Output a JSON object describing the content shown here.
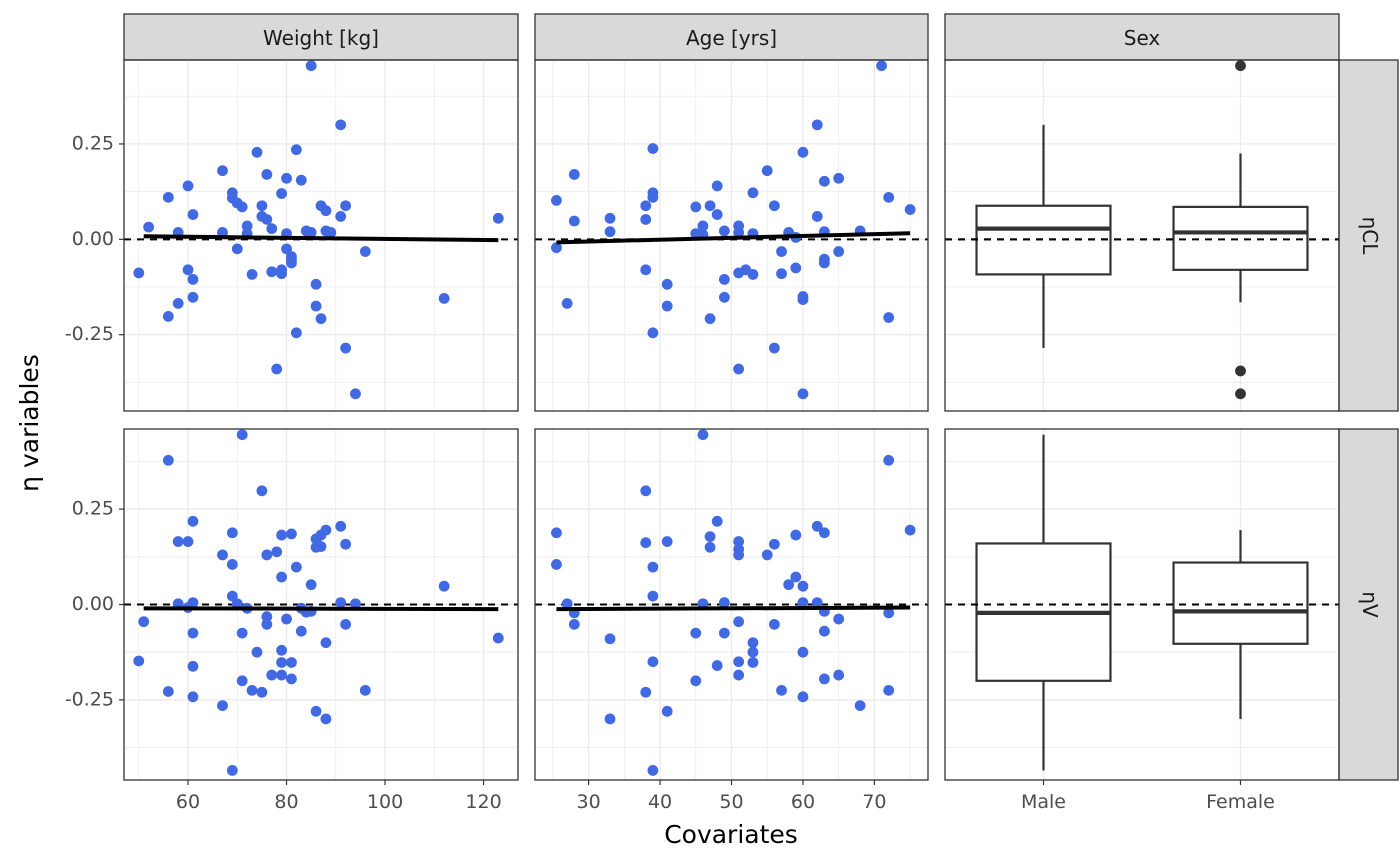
{
  "chart_data": {
    "type": "scatter",
    "x_title": "Covariates",
    "y_title": "η variables",
    "colors": {
      "points": "#4169e1",
      "trend": "#000000",
      "box": "#333333",
      "strip_bg": "#d9d9d9",
      "grid": "#ebebeb"
    },
    "columns": [
      {
        "key": "wt",
        "strip": "Weight [kg]",
        "kind": "continuous",
        "xlim": [
          47,
          127
        ],
        "ticks": [
          "60",
          "80",
          "100",
          "120"
        ],
        "tick_values": [
          60,
          80,
          100,
          120
        ]
      },
      {
        "key": "age",
        "strip": "Age [yrs]",
        "kind": "continuous",
        "xlim": [
          22.5,
          77.5
        ],
        "ticks": [
          "30",
          "40",
          "50",
          "60",
          "70"
        ],
        "tick_values": [
          30,
          40,
          50,
          60,
          70
        ]
      },
      {
        "key": "sex",
        "strip": "Sex",
        "kind": "categorical",
        "categories": [
          "Male",
          "Female"
        ]
      }
    ],
    "rows": [
      {
        "key": "cl",
        "strip": "ηCL",
        "ylim": [
          -0.45,
          0.47
        ],
        "ticks": [
          "0.25",
          "0.00",
          "-0.25"
        ],
        "tick_values": [
          0.25,
          0,
          -0.25
        ],
        "reference_line": 0
      },
      {
        "key": "v",
        "strip": "ηV",
        "ylim": [
          -0.46,
          0.46
        ],
        "ticks": [
          "0.25",
          "0.00",
          "-0.25"
        ],
        "tick_values": [
          0.25,
          0,
          -0.25
        ],
        "reference_line": 0
      }
    ],
    "panels": {
      "cl_wt": {
        "points": [
          [
            50,
            -0.088
          ],
          [
            52,
            0.032
          ],
          [
            56,
            0.11
          ],
          [
            56,
            -0.202
          ],
          [
            58,
            0.018
          ],
          [
            58,
            -0.168
          ],
          [
            60,
            -0.08
          ],
          [
            60,
            0.14
          ],
          [
            61,
            0.065
          ],
          [
            61,
            -0.105
          ],
          [
            61,
            -0.152
          ],
          [
            67,
            0.18
          ],
          [
            67,
            0.018
          ],
          [
            69,
            0.122
          ],
          [
            69,
            0.108
          ],
          [
            70,
            -0.025
          ],
          [
            70,
            0.095
          ],
          [
            71,
            0.085
          ],
          [
            72,
            0.035
          ],
          [
            72,
            0.015
          ],
          [
            73,
            -0.092
          ],
          [
            74,
            0.228
          ],
          [
            75,
            0.088
          ],
          [
            75,
            0.06
          ],
          [
            76,
            0.17
          ],
          [
            76,
            0.052
          ],
          [
            77,
            0.028
          ],
          [
            77,
            -0.085
          ],
          [
            78,
            -0.34
          ],
          [
            79,
            0.12
          ],
          [
            79,
            -0.08
          ],
          [
            79,
            -0.09
          ],
          [
            80,
            0.16
          ],
          [
            80,
            0.015
          ],
          [
            80,
            -0.025
          ],
          [
            81,
            -0.045
          ],
          [
            81,
            -0.055
          ],
          [
            81,
            -0.062
          ],
          [
            82,
            0.235
          ],
          [
            82,
            -0.245
          ],
          [
            83,
            0.155
          ],
          [
            84,
            0.022
          ],
          [
            85,
            0.455
          ],
          [
            85,
            0.018
          ],
          [
            86,
            -0.118
          ],
          [
            86,
            -0.175
          ],
          [
            87,
            0.088
          ],
          [
            87,
            -0.208
          ],
          [
            88,
            0.075
          ],
          [
            88,
            0.022
          ],
          [
            89,
            0.018
          ],
          [
            91,
            0.3
          ],
          [
            91,
            0.06
          ],
          [
            92,
            0.088
          ],
          [
            92,
            -0.285
          ],
          [
            94,
            -0.405
          ],
          [
            96,
            -0.032
          ],
          [
            112,
            -0.155
          ],
          [
            123,
            0.055
          ]
        ],
        "trend": [
          [
            51,
            0.008
          ],
          [
            123,
            -0.002
          ]
        ]
      },
      "cl_age": {
        "points": [
          [
            25.5,
            0.102
          ],
          [
            25.5,
            -0.022
          ],
          [
            27,
            -0.168
          ],
          [
            28,
            0.048
          ],
          [
            28,
            0.17
          ],
          [
            33,
            0.055
          ],
          [
            33,
            0.02
          ],
          [
            38,
            0.088
          ],
          [
            38,
            0.052
          ],
          [
            38,
            -0.08
          ],
          [
            39,
            0.122
          ],
          [
            39,
            0.11
          ],
          [
            39,
            0.238
          ],
          [
            39,
            -0.245
          ],
          [
            41,
            -0.118
          ],
          [
            41,
            -0.175
          ],
          [
            45,
            0.085
          ],
          [
            45,
            0.015
          ],
          [
            46,
            0.012
          ],
          [
            46,
            0.035
          ],
          [
            47,
            0.088
          ],
          [
            47,
            -0.208
          ],
          [
            48,
            0.14
          ],
          [
            48,
            0.065
          ],
          [
            49,
            0.022
          ],
          [
            49,
            -0.105
          ],
          [
            49,
            -0.152
          ],
          [
            51,
            0.035
          ],
          [
            51,
            0.018
          ],
          [
            51,
            -0.088
          ],
          [
            51,
            -0.34
          ],
          [
            52,
            -0.08
          ],
          [
            53,
            0.015
          ],
          [
            53,
            0.122
          ],
          [
            53,
            -0.092
          ],
          [
            55,
            0.18
          ],
          [
            56,
            0.088
          ],
          [
            56,
            -0.285
          ],
          [
            57,
            -0.032
          ],
          [
            57,
            -0.09
          ],
          [
            58,
            0.018
          ],
          [
            59,
            -0.075
          ],
          [
            59,
            0.005
          ],
          [
            60,
            0.228
          ],
          [
            60,
            -0.15
          ],
          [
            60,
            -0.158
          ],
          [
            60,
            -0.405
          ],
          [
            62,
            0.3
          ],
          [
            62,
            0.06
          ],
          [
            63,
            0.152
          ],
          [
            63,
            0.02
          ],
          [
            63,
            -0.052
          ],
          [
            63,
            -0.062
          ],
          [
            65,
            0.16
          ],
          [
            65,
            -0.032
          ],
          [
            68,
            0.022
          ],
          [
            71,
            0.455
          ],
          [
            72,
            0.11
          ],
          [
            72,
            -0.205
          ],
          [
            75,
            0.078
          ]
        ],
        "trend": [
          [
            25.5,
            -0.008
          ],
          [
            75,
            0.016
          ]
        ]
      },
      "cl_sex": {
        "boxes": [
          {
            "category": "Male",
            "whisker_low": -0.285,
            "q1": -0.092,
            "median": 0.028,
            "q3": 0.088,
            "whisker_high": 0.3,
            "outliers": []
          },
          {
            "category": "Female",
            "whisker_low": -0.165,
            "q1": -0.08,
            "median": 0.018,
            "q3": 0.085,
            "whisker_high": 0.225,
            "outliers": [
              0.455,
              -0.345,
              -0.405
            ]
          }
        ]
      },
      "v_wt": {
        "points": [
          [
            50,
            -0.148
          ],
          [
            51,
            -0.045
          ],
          [
            56,
            0.378
          ],
          [
            56,
            -0.228
          ],
          [
            58,
            0.165
          ],
          [
            58,
            0.002
          ],
          [
            60,
            0.165
          ],
          [
            60,
            -0.008
          ],
          [
            61,
            0.218
          ],
          [
            61,
            0.005
          ],
          [
            61,
            -0.075
          ],
          [
            61,
            -0.162
          ],
          [
            61,
            -0.242
          ],
          [
            67,
            0.13
          ],
          [
            67,
            -0.265
          ],
          [
            69,
            0.188
          ],
          [
            69,
            0.105
          ],
          [
            69,
            0.022
          ],
          [
            69,
            -0.435
          ],
          [
            70,
            0.002
          ],
          [
            71,
            -0.075
          ],
          [
            71,
            -0.2
          ],
          [
            71,
            0.445
          ],
          [
            72,
            -0.01
          ],
          [
            73,
            -0.225
          ],
          [
            74,
            -0.125
          ],
          [
            75,
            0.298
          ],
          [
            75,
            -0.23
          ],
          [
            76,
            -0.032
          ],
          [
            76,
            -0.052
          ],
          [
            76,
            0.13
          ],
          [
            77,
            -0.185
          ],
          [
            78,
            0.138
          ],
          [
            79,
            0.072
          ],
          [
            79,
            0.182
          ],
          [
            79,
            -0.12
          ],
          [
            79,
            -0.152
          ],
          [
            79,
            -0.185
          ],
          [
            80,
            -0.038
          ],
          [
            81,
            0.185
          ],
          [
            81,
            -0.195
          ],
          [
            81,
            -0.152
          ],
          [
            82,
            0.098
          ],
          [
            83,
            -0.01
          ],
          [
            83,
            -0.07
          ],
          [
            84,
            -0.02
          ],
          [
            85,
            0.052
          ],
          [
            85,
            -0.018
          ],
          [
            86,
            -0.28
          ],
          [
            86,
            0.172
          ],
          [
            86,
            0.15
          ],
          [
            87,
            0.152
          ],
          [
            87,
            0.182
          ],
          [
            88,
            0.195
          ],
          [
            88,
            -0.1
          ],
          [
            88,
            -0.3
          ],
          [
            91,
            0.205
          ],
          [
            91,
            0.005
          ],
          [
            92,
            0.158
          ],
          [
            92,
            -0.052
          ],
          [
            94,
            0.002
          ],
          [
            96,
            -0.225
          ],
          [
            112,
            0.048
          ],
          [
            123,
            -0.088
          ]
        ],
        "trend": [
          [
            51,
            -0.01
          ],
          [
            123,
            -0.012
          ]
        ]
      },
      "v_age": {
        "points": [
          [
            25.5,
            0.188
          ],
          [
            25.5,
            0.105
          ],
          [
            27,
            0.002
          ],
          [
            28,
            -0.022
          ],
          [
            28,
            -0.052
          ],
          [
            33,
            -0.3
          ],
          [
            33,
            -0.09
          ],
          [
            38,
            0.298
          ],
          [
            38,
            0.162
          ],
          [
            38,
            -0.23
          ],
          [
            39,
            0.098
          ],
          [
            39,
            0.022
          ],
          [
            39,
            -0.15
          ],
          [
            39,
            -0.435
          ],
          [
            41,
            0.165
          ],
          [
            41,
            -0.28
          ],
          [
            45,
            -0.075
          ],
          [
            45,
            -0.2
          ],
          [
            46,
            0.445
          ],
          [
            46,
            0.002
          ],
          [
            47,
            0.178
          ],
          [
            47,
            0.15
          ],
          [
            48,
            0.218
          ],
          [
            48,
            -0.16
          ],
          [
            49,
            0.005
          ],
          [
            49,
            -0.075
          ],
          [
            51,
            0.165
          ],
          [
            51,
            0.145
          ],
          [
            51,
            0.13
          ],
          [
            51,
            -0.045
          ],
          [
            51,
            -0.15
          ],
          [
            51,
            -0.185
          ],
          [
            53,
            -0.1
          ],
          [
            53,
            -0.125
          ],
          [
            53,
            -0.152
          ],
          [
            55,
            0.13
          ],
          [
            56,
            0.158
          ],
          [
            56,
            -0.052
          ],
          [
            57,
            -0.225
          ],
          [
            58,
            0.052
          ],
          [
            59,
            0.182
          ],
          [
            59,
            0.072
          ],
          [
            60,
            0.048
          ],
          [
            60,
            0.005
          ],
          [
            60,
            -0.125
          ],
          [
            60,
            -0.242
          ],
          [
            62,
            0.205
          ],
          [
            62,
            0.005
          ],
          [
            63,
            0.188
          ],
          [
            63,
            -0.018
          ],
          [
            63,
            -0.07
          ],
          [
            63,
            -0.195
          ],
          [
            65,
            -0.038
          ],
          [
            65,
            -0.185
          ],
          [
            68,
            -0.265
          ],
          [
            72,
            -0.022
          ],
          [
            72,
            -0.225
          ],
          [
            72,
            0.378
          ],
          [
            75,
            0.195
          ]
        ],
        "trend": [
          [
            25.5,
            -0.012
          ],
          [
            75,
            -0.008
          ]
        ]
      },
      "v_sex": {
        "boxes": [
          {
            "category": "Male",
            "whisker_low": -0.435,
            "q1": -0.2,
            "median": -0.022,
            "q3": 0.16,
            "whisker_high": 0.445,
            "outliers": []
          },
          {
            "category": "Female",
            "whisker_low": -0.3,
            "q1": -0.103,
            "median": -0.018,
            "q3": 0.11,
            "whisker_high": 0.195,
            "outliers": []
          }
        ]
      }
    }
  }
}
